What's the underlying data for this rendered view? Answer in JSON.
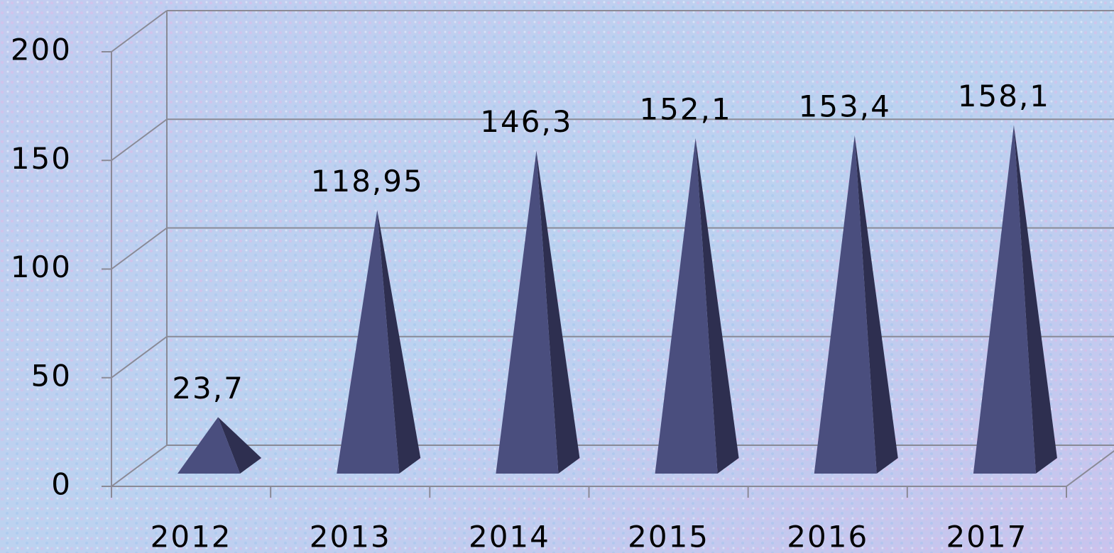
{
  "chart_data": {
    "type": "bar",
    "shape": "pyramid",
    "categories": [
      "2012",
      "2013",
      "2014",
      "2015",
      "2016",
      "2017"
    ],
    "values": [
      23.7,
      118.95,
      146.3,
      152.1,
      153.4,
      158.1
    ],
    "value_labels": [
      "23,7",
      "118,95",
      "146,3",
      "152,1",
      "153,4",
      "158,1"
    ],
    "color": "#4a4e7e",
    "ylim": [
      0,
      200
    ],
    "yticks": [
      0,
      50,
      100,
      150,
      200
    ],
    "grid": true
  }
}
